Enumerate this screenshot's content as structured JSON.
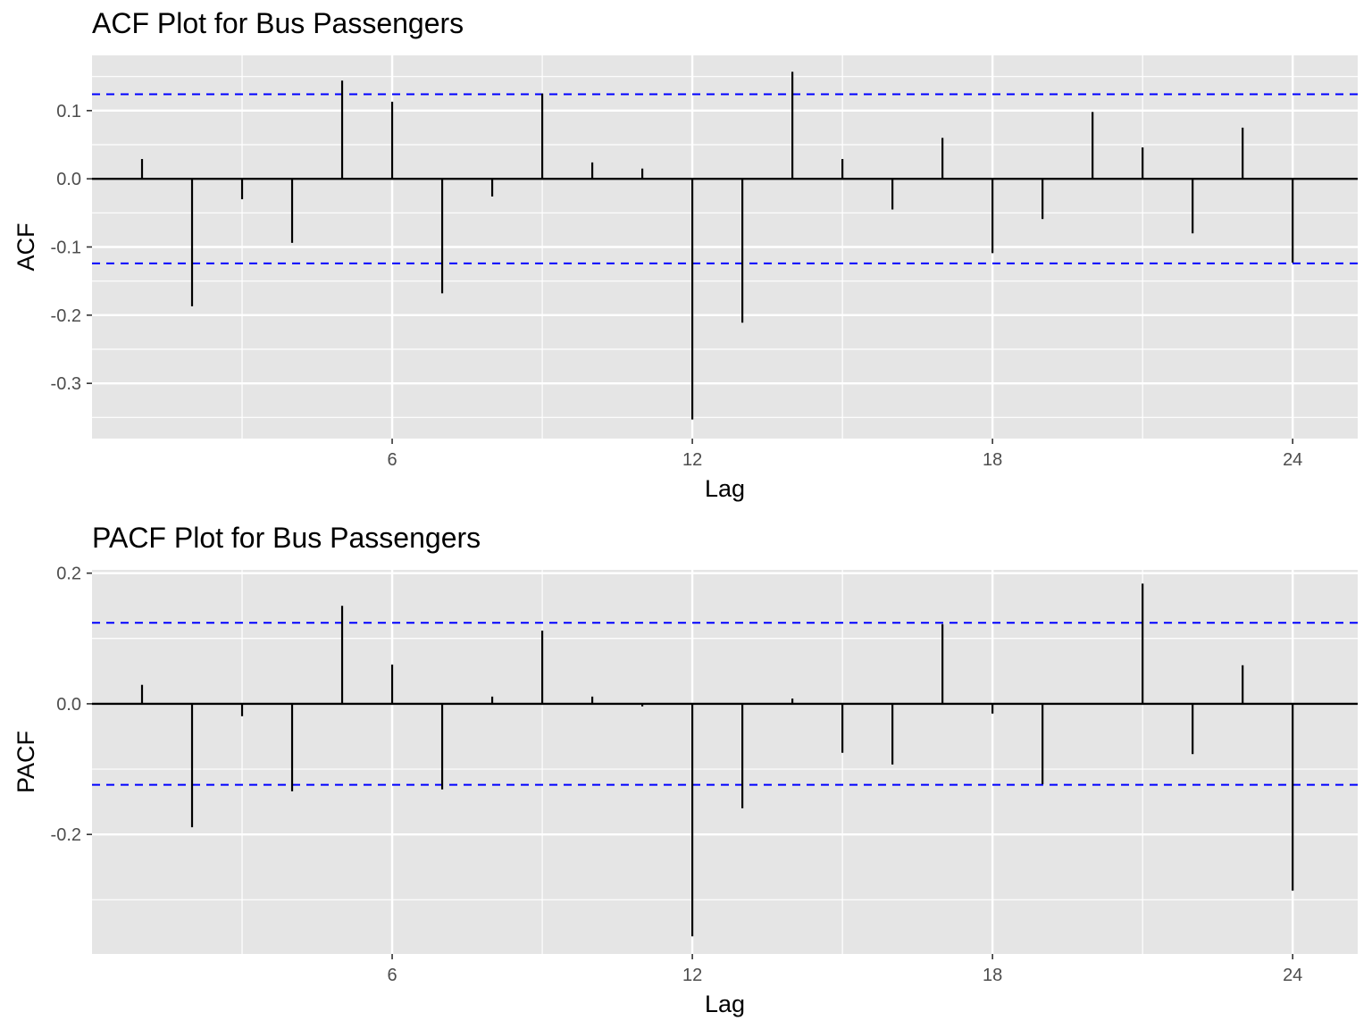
{
  "chart_data": [
    {
      "type": "bar",
      "title": "ACF Plot for Bus Passengers",
      "xlabel": "Lag",
      "ylabel": "ACF",
      "x_ticks": [
        6,
        12,
        18,
        24
      ],
      "y_ticks": [
        0.1,
        0.0,
        -0.1,
        -0.2,
        -0.3
      ],
      "y_tick_labels": [
        "0.1",
        "0.0",
        "-0.1",
        "-0.2",
        "-0.3"
      ],
      "xlim": [
        0,
        25.3
      ],
      "ylim": [
        -0.381,
        0.181
      ],
      "grid": true,
      "confidence_bound": 0.124,
      "lags": [
        1,
        2,
        3,
        4,
        5,
        6,
        7,
        8,
        9,
        10,
        11,
        12,
        13,
        14,
        15,
        16,
        17,
        18,
        19,
        20,
        21,
        22,
        23,
        24
      ],
      "values": [
        0.029,
        -0.187,
        -0.03,
        -0.094,
        0.144,
        0.113,
        -0.168,
        -0.026,
        0.125,
        0.024,
        0.015,
        -0.353,
        -0.211,
        0.157,
        0.029,
        -0.045,
        0.06,
        -0.109,
        -0.059,
        0.098,
        0.046,
        -0.08,
        0.075,
        -0.123
      ],
      "colors": {
        "spike": "#000000",
        "ci": "#0000ff",
        "panel": "#e5e5e5",
        "grid": "#ffffff"
      }
    },
    {
      "type": "bar",
      "title": "PACF Plot for Bus Passengers",
      "xlabel": "Lag",
      "ylabel": "PACF",
      "x_ticks": [
        6,
        12,
        18,
        24
      ],
      "y_ticks": [
        0.2,
        0.0,
        -0.2
      ],
      "y_tick_labels": [
        "0.2",
        "0.0",
        "-0.2"
      ],
      "xlim": [
        0,
        25.3
      ],
      "ylim": [
        -0.383,
        0.205
      ],
      "grid": true,
      "confidence_bound": 0.124,
      "lags": [
        1,
        2,
        3,
        4,
        5,
        6,
        7,
        8,
        9,
        10,
        11,
        12,
        13,
        14,
        15,
        16,
        17,
        18,
        19,
        20,
        21,
        22,
        23,
        24
      ],
      "values": [
        0.029,
        -0.189,
        -0.019,
        -0.134,
        0.15,
        0.06,
        -0.131,
        0.011,
        0.112,
        0.011,
        -0.004,
        -0.356,
        -0.16,
        0.008,
        -0.075,
        -0.093,
        0.122,
        -0.015,
        -0.123,
        0.0,
        0.184,
        -0.077,
        0.059,
        -0.286
      ],
      "colors": {
        "spike": "#000000",
        "ci": "#0000ff",
        "panel": "#e5e5e5",
        "grid": "#ffffff"
      }
    }
  ]
}
